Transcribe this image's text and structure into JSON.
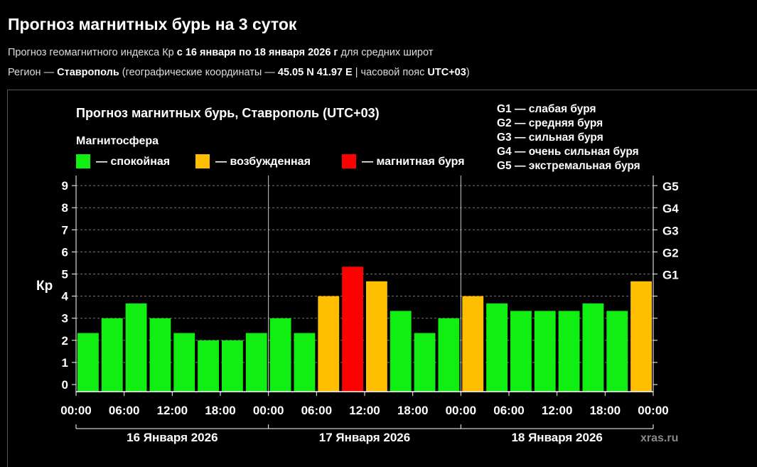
{
  "page": {
    "title": "Прогноз магнитных бурь на 3 суток",
    "subtitle_1": {
      "prefix": "Прогноз геомагнитного индекса Кр ",
      "bold": "с 16 января по 18 января 2026 г",
      "suffix": " для средних широт"
    },
    "subtitle_2": {
      "prefix": "Регион — ",
      "region": "Ставрополь",
      "mid": " (географические координаты — ",
      "coords": "45.05 N 41.97 E",
      "mid2": " | часовой пояс ",
      "tz": "UTC+03",
      "suffix": ")"
    }
  },
  "chart_data": {
    "type": "bar",
    "title": "Прогноз магнитных бурь, Ставрополь (UTC+03)",
    "legend_title": "Магнитосфера",
    "legend": [
      {
        "label": "— спокойная",
        "color": "#11ee11"
      },
      {
        "label": "— возбужденная",
        "color": "#ffbf00"
      },
      {
        "label": "— магнитная буря",
        "color": "#ff0000"
      }
    ],
    "g_legend": [
      "G1 — слабая буря",
      "G2 — средняя буря",
      "G3 — сильная буря",
      "G4 — очень сильная буря",
      "G5 — экстремальная буря"
    ],
    "ylabel": "Кр",
    "ylim": [
      0,
      9
    ],
    "yticks": [
      "0",
      "1",
      "2",
      "3",
      "4",
      "5",
      "6",
      "7",
      "8",
      "9"
    ],
    "g_ticks": [
      {
        "label": "G1",
        "value": 5
      },
      {
        "label": "G2",
        "value": 6
      },
      {
        "label": "G3",
        "value": 7
      },
      {
        "label": "G4",
        "value": 8
      },
      {
        "label": "G5",
        "value": 9
      }
    ],
    "xtick_labels": [
      "00:00",
      "06:00",
      "12:00",
      "18:00",
      "00:00",
      "06:00",
      "12:00",
      "18:00",
      "00:00",
      "06:00",
      "12:00",
      "18:00",
      "00:00"
    ],
    "days": [
      "16 Января 2026",
      "17 Января 2026",
      "18 Января 2026"
    ],
    "values": [
      2.33,
      3.0,
      3.67,
      3.0,
      2.33,
      2.0,
      2.0,
      2.33,
      3.0,
      2.33,
      4.0,
      5.33,
      4.67,
      3.33,
      2.33,
      3.0,
      4.0,
      3.67,
      3.33,
      3.33,
      3.33,
      3.67,
      3.33,
      4.67
    ],
    "colors": {
      "calm": "#11ee11",
      "excited": "#ffbf00",
      "storm": "#ff0000"
    },
    "watermark": "xras.ru",
    "grid": "dashed"
  }
}
